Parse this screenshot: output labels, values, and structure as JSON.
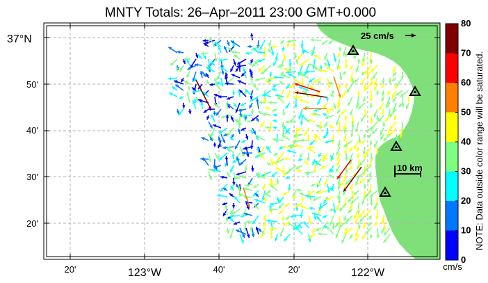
{
  "title": "MNTY Totals: 26–Apr–2011 23:00 GMT+0.000",
  "reference_vector_label": "25 cm/s",
  "scale_bar_label": "10 km",
  "latitude_labels": [
    "20'",
    "30'",
    "40'",
    "50'",
    "37°N"
  ],
  "longitude_labels": [
    "20'",
    "123°W",
    "40'",
    "20'",
    "122°W"
  ],
  "colorbar": {
    "ticks": [
      "0",
      "10",
      "20",
      "30",
      "40",
      "50",
      "60",
      "70",
      "80"
    ],
    "unit": "cm/s",
    "note": "NOTE: Data outside color range will be saturated.",
    "colors": [
      "#0000ff",
      "#0077ff",
      "#00ffff",
      "#7fff7f",
      "#ffff00",
      "#ff7f00",
      "#ff0000",
      "#7f0000"
    ]
  },
  "colors": {
    "land": "#7fe07a",
    "ocean": "#ffffff",
    "grid": "#b0b0b0",
    "station_fill": "#7fe07a",
    "station_stroke": "#000000"
  },
  "stations": [
    {
      "name": "station-1"
    },
    {
      "name": "station-2"
    },
    {
      "name": "station-3"
    },
    {
      "name": "station-4"
    }
  ]
}
